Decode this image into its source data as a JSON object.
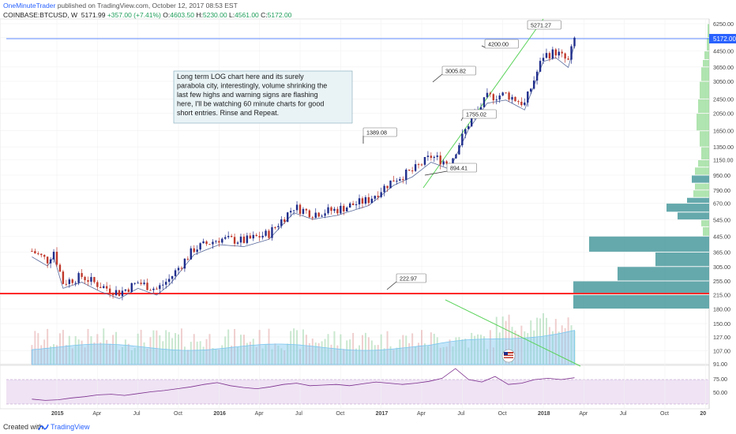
{
  "header": {
    "author": "OneMinuteTrader",
    "published": "published on TradingView.com, October 12, 2017 08:53 EST",
    "symbol": "COINBASE:BTCUSD, W",
    "last": "5171.99",
    "change": "+357.00 (+7.41%)",
    "open_label": "O:",
    "open": "4603.50",
    "high_label": "H:",
    "high": "5230.00",
    "low_label": "L:",
    "low": "4561.00",
    "close_label": "C:",
    "close": "5172.00"
  },
  "colors": {
    "up": "#1f2e8c",
    "down": "#c0392b",
    "trendline": "#5ad35a",
    "support": "#ff2a2a",
    "volume_profile": "#4a9a9e",
    "volume_profile_small": "#8ed98e",
    "rsi_line": "#7b2d8c",
    "rsi_band": "#efe3f4",
    "ma": "#5a6b9c",
    "vol_area": "#7cc6f0",
    "price_line": "#2962ff"
  },
  "annotation": {
    "lines": [
      "Long term LOG chart here and its surely",
      "parabola city, interestingly, volume shrinking the",
      "last few highs and warning signs are flashing",
      "here, I'll be watching 60 minute charts for good",
      "short entries. Rinse and Repeat."
    ]
  },
  "price_badge": "5172.00",
  "chart_data": {
    "type": "candlestick",
    "scale": "log",
    "timeframe": "W",
    "ylim": [
      91,
      6250
    ],
    "price_ticks": [
      6250,
      5250,
      4450,
      3650,
      3050,
      2450,
      2050,
      1650,
      1350,
      1150,
      950,
      790,
      670,
      545,
      445,
      365,
      305,
      255,
      215,
      180,
      150,
      127,
      107,
      91
    ],
    "time_ticks": [
      "2015",
      "Apr",
      "Jul",
      "Oct",
      "2016",
      "Apr",
      "Jul",
      "Oct",
      "2017",
      "Apr",
      "Jul",
      "Oct",
      "2018",
      "Apr",
      "Jul",
      "Oct",
      "20"
    ],
    "callouts": [
      "5271.27",
      "4200.00",
      "3005.82",
      "1755.02",
      "1389.08",
      "894.41",
      "222.97"
    ],
    "support_level": 215,
    "current_price": 5172,
    "rsi": {
      "ticks": [
        75,
        50
      ],
      "band": [
        30,
        70
      ],
      "values": [
        38,
        36,
        37,
        40,
        42,
        45,
        46,
        44,
        47,
        50,
        52,
        55,
        58,
        62,
        65,
        60,
        57,
        55,
        58,
        62,
        64,
        60,
        61,
        62,
        60,
        63,
        66,
        64,
        62,
        64,
        67,
        72,
        88,
        70,
        66,
        75,
        62,
        64,
        70,
        72,
        70,
        73
      ]
    }
  },
  "footer": {
    "created": "Created with",
    "tv": "TradingView"
  }
}
